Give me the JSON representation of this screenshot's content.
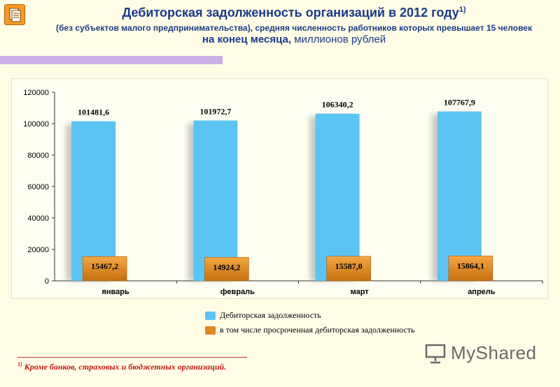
{
  "page": {
    "title": "Дебиторская задолженность организаций в 2012 году",
    "title_sup": "1)",
    "subtitle": "(без субъектов малого предпринимательства), средняя численность работников которых превышает 15 человек",
    "subtitle_bold": "на конец месяца,",
    "subtitle_unit": " миллионов рублей",
    "footnote_sup": "1)",
    "footnote": " Кроме банков, страховых и бюджетных организаций.",
    "logo_text": "MyShared"
  },
  "colors": {
    "series_main": "#5cc4f2",
    "series_overdue": "#e08a1e",
    "title": "#1a3a8a",
    "footnote": "#c0180d"
  },
  "chart_data": {
    "type": "bar",
    "categories": [
      "январь",
      "февраль",
      "март",
      "апрель"
    ],
    "series": [
      {
        "name": "Дебиторская задолженность",
        "values": [
          101481.6,
          101972.7,
          106340.2,
          107767.9
        ],
        "labels": [
          "101481,6",
          "101972,7",
          "106340,2",
          "107767,9"
        ]
      },
      {
        "name": "в том числе просроченная дебиторская задолженность",
        "values": [
          15467.2,
          14924.2,
          15587.0,
          15864.1
        ],
        "labels": [
          "15467,2",
          "14924,2",
          "15587,0",
          "15864,1"
        ]
      }
    ],
    "yticks": [
      "0",
      "20000",
      "40000",
      "60000",
      "80000",
      "100000",
      "120000"
    ],
    "ylim": [
      0,
      120000
    ],
    "grid": false,
    "legend": "bottom"
  }
}
